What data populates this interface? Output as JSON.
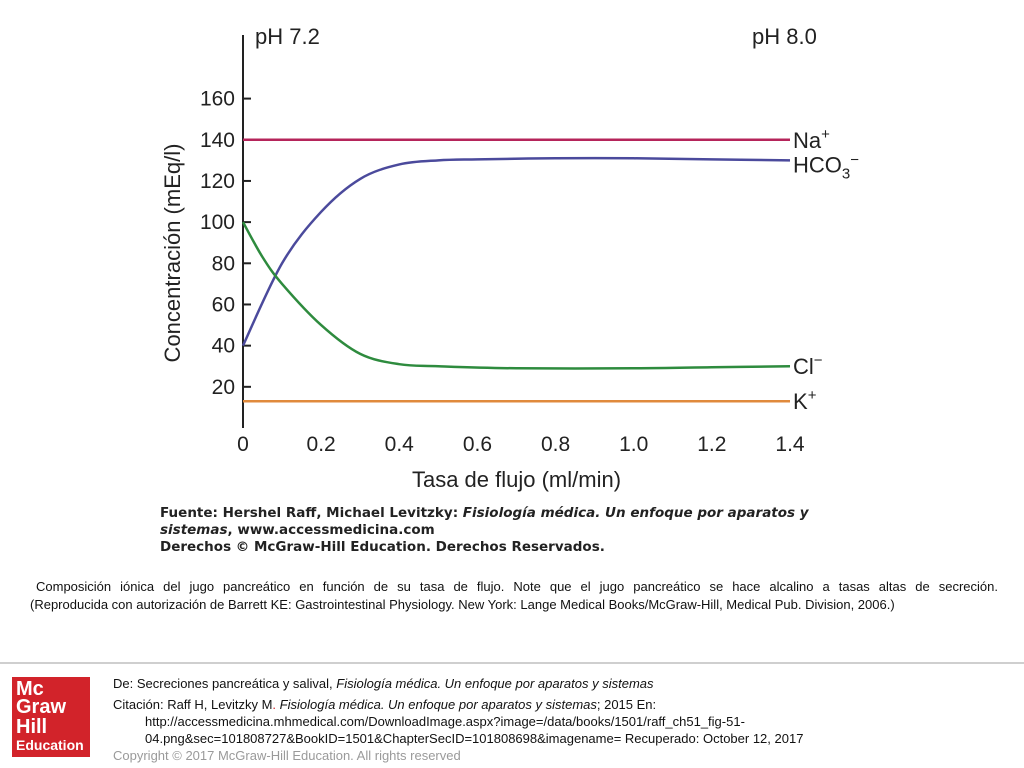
{
  "chart_data": {
    "type": "line",
    "title": "",
    "xlabel": "Tasa de flujo (ml/min)",
    "ylabel": "Concentración (mEq/l)",
    "xlim": [
      0,
      1.4
    ],
    "ylim": [
      0,
      170
    ],
    "x_ticks": [
      "0",
      "0.2",
      "0.4",
      "0.6",
      "0.8",
      "1.0",
      "1.2",
      "1.4"
    ],
    "y_ticks": [
      "20",
      "40",
      "60",
      "80",
      "100",
      "120",
      "140",
      "160"
    ],
    "grid": false,
    "annotations": {
      "left": "pH 7.2",
      "right": "pH 8.0"
    },
    "series": [
      {
        "name": "Na+",
        "color": "#b5245a",
        "x": [
          0,
          1.4
        ],
        "y": [
          140,
          140
        ]
      },
      {
        "name": "HCO3−",
        "color": "#4b4a9c",
        "x": [
          0,
          0.1,
          0.2,
          0.3,
          0.4,
          0.5,
          0.6,
          0.8,
          1.0,
          1.2,
          1.4
        ],
        "y": [
          40,
          80,
          105,
          121,
          128,
          130,
          130.5,
          131,
          131,
          130.5,
          130
        ]
      },
      {
        "name": "Cl−",
        "color": "#2e8b3e",
        "x": [
          0,
          0.05,
          0.1,
          0.2,
          0.3,
          0.4,
          0.5,
          0.7,
          1.0,
          1.2,
          1.4
        ],
        "y": [
          100,
          83,
          70,
          50,
          36,
          31,
          30,
          29,
          29,
          29.5,
          30
        ]
      },
      {
        "name": "K+",
        "color": "#e08a3c",
        "x": [
          0,
          1.4
        ],
        "y": [
          13,
          13
        ]
      }
    ],
    "series_labels": [
      {
        "text": "Na",
        "sup": "+",
        "sub": ""
      },
      {
        "text": "HCO",
        "sup": "−",
        "sub": "3"
      },
      {
        "text": "Cl",
        "sup": "−",
        "sub": ""
      },
      {
        "text": "K",
        "sup": "+",
        "sub": ""
      }
    ]
  },
  "source": {
    "line1_prefix": "Fuente: Hershel Raff, Michael Levitzky: ",
    "line1_title": "Fisiología médica. Un enfoque por aparatos y",
    "line2_title": "sistemas",
    "line2_rest": ", www.accessmedicina.com",
    "line3": "Derechos © McGraw-Hill Education. Derechos Reservados."
  },
  "caption": {
    "line1": "Composición iónica del jugo pancreático en función de su tasa de flujo. Note que el jugo pancreático se hace alcalino a tasas altas de secreción.",
    "line2": "(Reproducida con autorización de Barrett KE: Gastrointestinal Physiology. New York: Lange Medical Books/McGraw-Hill, Medical Pub. Division, 2006.)"
  },
  "logo": {
    "l1": "Mc",
    "l2": "Graw",
    "l3": "Hill",
    "l4": "Education"
  },
  "footer": {
    "de_prefix": "De: Secreciones pancreática y salival, ",
    "de_book": "Fisiología médica. Un enfoque por aparatos y sistemas",
    "cit_prefix": "Citación: Raff H, Levitzky M",
    "cit_sep": ". ",
    "cit_book": "Fisiología médica. Un enfoque por aparatos y sistemas",
    "cit_rest": "; 2015 En:",
    "url1": "http://accessmedicina.mhmedical.com/DownloadImage.aspx?image=/data/books/1501/raff_ch51_fig-51-",
    "url2": "04.png&sec=101808727&BookID=1501&ChapterSecID=101808698&imagename= Recuperado: October 12, 2017",
    "copyright": "Copyright © 2017 McGraw-Hill Education. All rights reserved"
  }
}
